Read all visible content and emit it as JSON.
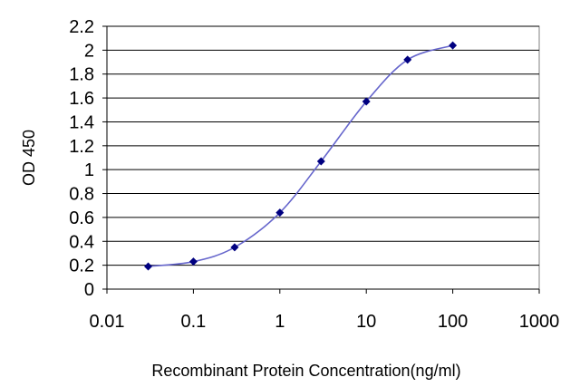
{
  "chart_data": {
    "type": "line",
    "x_scale": "log",
    "xlabel": "Recombinant Protein Concentration(ng/ml)",
    "ylabel": "OD 450",
    "xlim": [
      0.01,
      1000
    ],
    "ylim": [
      0,
      2.2
    ],
    "x_ticks": [
      "0.01",
      "0.1",
      "1",
      "10",
      "100",
      "1000"
    ],
    "y_ticks": [
      "0",
      "0.2",
      "0.4",
      "0.6",
      "0.8",
      "1",
      "1.2",
      "1.4",
      "1.6",
      "1.8",
      "2",
      "2.2"
    ],
    "grid": true,
    "legend": false,
    "series": [
      {
        "color": "#6666cc",
        "marker_color": "#000080",
        "x": [
          0.03,
          0.1,
          0.3,
          1,
          3,
          10,
          30,
          100
        ],
        "y": [
          0.19,
          0.23,
          0.35,
          0.64,
          1.07,
          1.57,
          1.92,
          2.04
        ]
      }
    ]
  }
}
